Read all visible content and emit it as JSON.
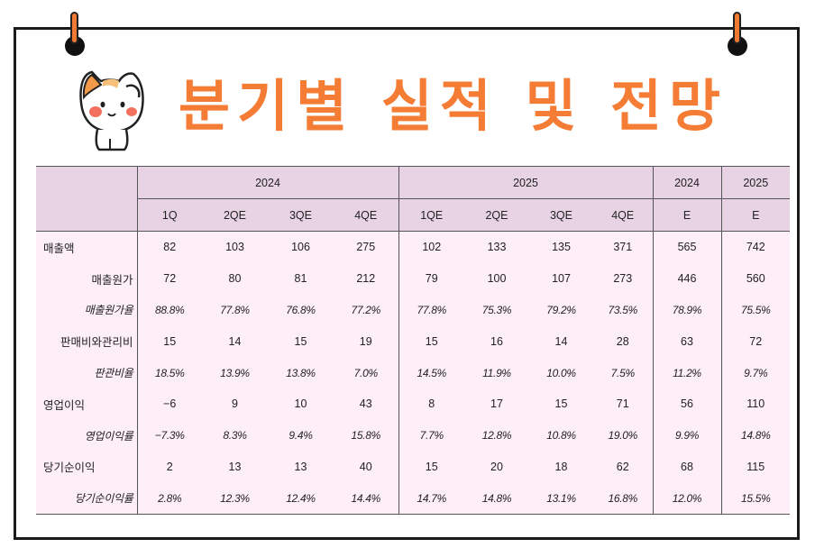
{
  "title": "분기별 실적 및 전망",
  "header": {
    "years": [
      "2024",
      "2025",
      "2024",
      "2025"
    ],
    "periods": [
      "1Q",
      "2QE",
      "3QE",
      "4QE",
      "1QE",
      "2QE",
      "3QE",
      "4QE",
      "E",
      "E"
    ]
  },
  "rows": [
    {
      "label": "매출액",
      "values": [
        "82",
        "103",
        "106",
        "275",
        "102",
        "133",
        "135",
        "371",
        "565",
        "742"
      ]
    },
    {
      "label": "매출원가",
      "values": [
        "72",
        "80",
        "81",
        "212",
        "79",
        "100",
        "107",
        "273",
        "446",
        "560"
      ]
    },
    {
      "label": "매출원가율",
      "values": [
        "88.8%",
        "77.8%",
        "76.8%",
        "77.2%",
        "77.8%",
        "75.3%",
        "79.2%",
        "73.5%",
        "78.9%",
        "75.5%"
      ]
    },
    {
      "label": "판매비와관리비",
      "values": [
        "15",
        "14",
        "15",
        "19",
        "15",
        "16",
        "14",
        "28",
        "63",
        "72"
      ]
    },
    {
      "label": "판관비율",
      "values": [
        "18.5%",
        "13.9%",
        "13.8%",
        "7.0%",
        "14.5%",
        "11.9%",
        "10.0%",
        "7.5%",
        "11.2%",
        "9.7%"
      ]
    },
    {
      "label": "영업이익",
      "values": [
        "−6",
        "9",
        "10",
        "43",
        "8",
        "17",
        "15",
        "71",
        "56",
        "110"
      ]
    },
    {
      "label": "영업이익률",
      "values": [
        "−7.3%",
        "8.3%",
        "9.4%",
        "15.8%",
        "7.7%",
        "12.8%",
        "10.8%",
        "19.0%",
        "9.9%",
        "14.8%"
      ]
    },
    {
      "label": "당기순이익",
      "values": [
        "2",
        "13",
        "13",
        "40",
        "15",
        "20",
        "18",
        "62",
        "68",
        "115"
      ]
    },
    {
      "label": "당기순이익률",
      "values": [
        "2.8%",
        "12.3%",
        "12.4%",
        "14.4%",
        "14.7%",
        "14.8%",
        "13.1%",
        "16.8%",
        "12.0%",
        "15.5%"
      ]
    }
  ]
}
